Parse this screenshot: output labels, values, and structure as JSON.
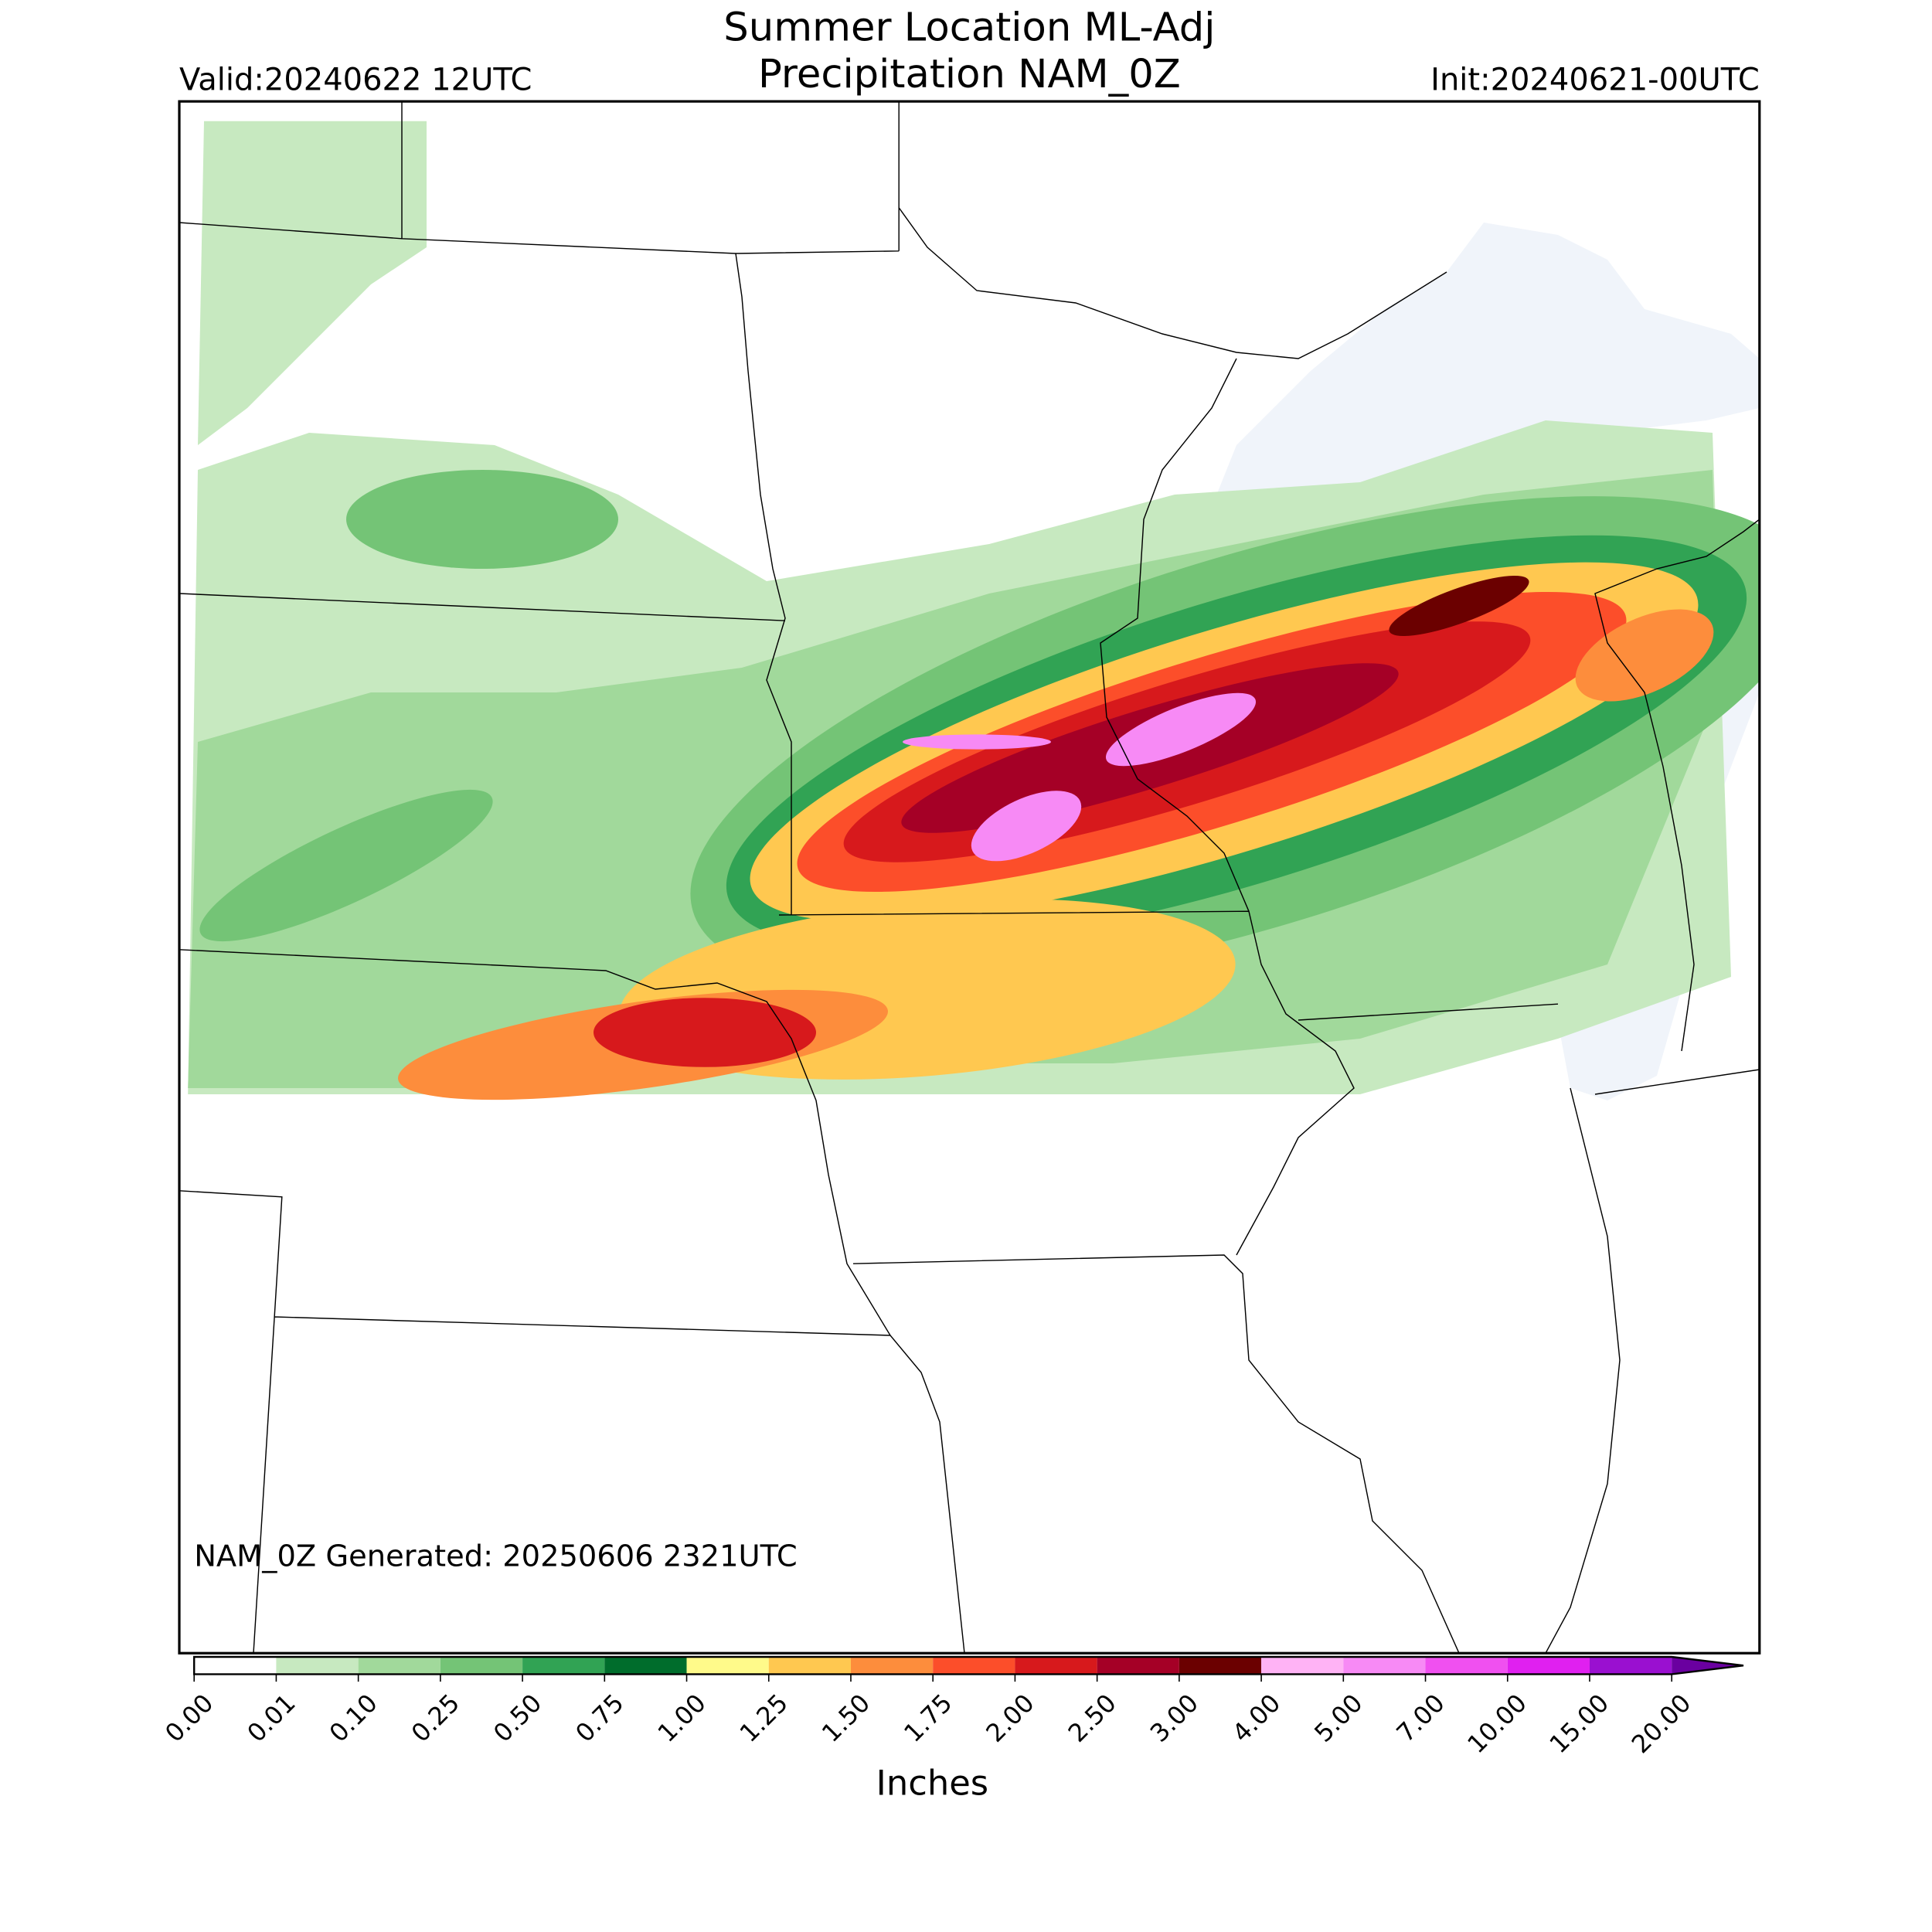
{
  "header": {
    "title": "Summer Location ML-Adj",
    "subtitle": "Precipitation NAM_0Z",
    "valid": "Valid:20240622 12UTC",
    "init": "Init:20240621-00UTC"
  },
  "footer_note": "NAM_0Z Generated: 20250606 2321UTC",
  "colorbar": {
    "label": "Inches",
    "ticks": [
      "0.00",
      "0.01",
      "0.10",
      "0.25",
      "0.50",
      "0.75",
      "1.00",
      "1.25",
      "1.50",
      "1.75",
      "2.00",
      "2.50",
      "3.00",
      "4.00",
      "5.00",
      "7.00",
      "10.00",
      "15.00",
      "20.00"
    ],
    "colors": [
      "#ffffff",
      "#c7e9c0",
      "#a1d99b",
      "#74c476",
      "#31a354",
      "#006d2c",
      "#fffa8a",
      "#ffc850",
      "#fd8d3c",
      "#fc4e2a",
      "#d7191c",
      "#a50026",
      "#6b0000",
      "#ffb3f5",
      "#f78af5",
      "#f050f0",
      "#e020f0",
      "#9a10d0"
    ],
    "extend_color": "#6a00a0"
  }
}
